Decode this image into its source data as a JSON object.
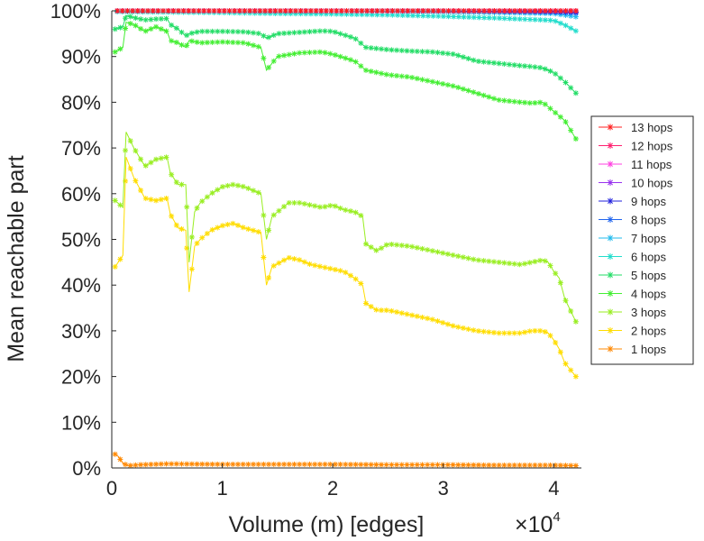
{
  "chart_data": {
    "type": "line",
    "xlabel": "Volume (m) [edges]",
    "ylabel": "Mean reachable part",
    "x_multiplier_label": "×10",
    "x_multiplier_exponent": "4",
    "xlim": [
      0,
      42500
    ],
    "ylim": [
      0,
      100
    ],
    "xticks": [
      0,
      10000,
      20000,
      30000,
      40000
    ],
    "xtick_labels": [
      "0",
      "1",
      "2",
      "3",
      "4"
    ],
    "yticks": [
      0,
      10,
      20,
      30,
      40,
      50,
      60,
      70,
      80,
      90,
      100
    ],
    "ytick_labels": [
      "0%",
      "10%",
      "20%",
      "30%",
      "40%",
      "50%",
      "60%",
      "70%",
      "80%",
      "90%",
      "100%"
    ],
    "grid": false,
    "legend_position": "right",
    "legend": [
      "13 hops",
      "12 hops",
      "11 hops",
      "10 hops",
      "9 hops",
      "8 hops",
      "7 hops",
      "6 hops",
      "5 hops",
      "4 hops",
      "3 hops",
      "2 hops",
      "1 hops"
    ],
    "series": [
      {
        "name": "13 hops",
        "color": "#ff2020",
        "x": [
          500,
          10000,
          20000,
          30000,
          40000,
          42000
        ],
        "y": [
          100,
          100,
          100,
          100,
          100,
          100
        ]
      },
      {
        "name": "12 hops",
        "color": "#ff2070",
        "x": [
          500,
          10000,
          20000,
          30000,
          40000,
          42000
        ],
        "y": [
          100,
          100,
          100,
          100,
          100,
          100
        ]
      },
      {
        "name": "11 hops",
        "color": "#ff40e0",
        "x": [
          500,
          10000,
          20000,
          30000,
          40000,
          42000
        ],
        "y": [
          100,
          100,
          100,
          100,
          100,
          100
        ]
      },
      {
        "name": "10 hops",
        "color": "#9933ee",
        "x": [
          500,
          10000,
          20000,
          30000,
          40000,
          42000
        ],
        "y": [
          100,
          100,
          100,
          100,
          100,
          100
        ]
      },
      {
        "name": "9 hops",
        "color": "#2222dd",
        "x": [
          500,
          10000,
          20000,
          30000,
          40000,
          42000
        ],
        "y": [
          100,
          100,
          100,
          100,
          99.8,
          99.7
        ]
      },
      {
        "name": "8 hops",
        "color": "#2266ee",
        "x": [
          500,
          10000,
          20000,
          30000,
          40000,
          42000
        ],
        "y": [
          100,
          100,
          100,
          100,
          99.7,
          99.5
        ]
      },
      {
        "name": "7 hops",
        "color": "#22bbee",
        "x": [
          500,
          10000,
          20000,
          30000,
          40000,
          42000
        ],
        "y": [
          100,
          100,
          100,
          99.8,
          99.4,
          98.7
        ]
      },
      {
        "name": "6 hops",
        "color": "#22ddcc",
        "x": [
          500,
          5000,
          10000,
          15000,
          20000,
          25000,
          30000,
          35000,
          40000,
          41000,
          42000
        ],
        "y": [
          99.8,
          99.7,
          99.6,
          99.4,
          99.3,
          99.1,
          98.8,
          98.4,
          97.9,
          96.9,
          95.6
        ]
      },
      {
        "name": "5 hops",
        "color": "#22dd66",
        "x": [
          300,
          1000,
          1300,
          2000,
          3000,
          4000,
          5000,
          5300,
          6000,
          6700,
          7000,
          8000,
          10000,
          12000,
          13500,
          14000,
          15000,
          17000,
          19000,
          20000,
          22000,
          23000,
          25000,
          27000,
          29000,
          31000,
          33000,
          35000,
          37000,
          38000,
          39000,
          40000,
          41000,
          42000
        ],
        "y": [
          96,
          96.5,
          99,
          98.5,
          98,
          98.2,
          98.3,
          97,
          96,
          94.5,
          95,
          95.5,
          95.5,
          95.4,
          95,
          94,
          95,
          95.3,
          95.6,
          95.5,
          94,
          92,
          91.5,
          91.2,
          91,
          90.5,
          89,
          88.5,
          88,
          87.8,
          87.5,
          86.5,
          84.5,
          82
        ]
      },
      {
        "name": "4 hops",
        "color": "#44ee33",
        "x": [
          300,
          1000,
          1300,
          2000,
          3000,
          4000,
          5000,
          5300,
          6000,
          6700,
          7000,
          8000,
          10000,
          12000,
          13500,
          14000,
          15000,
          17000,
          19000,
          20000,
          22000,
          23000,
          25000,
          27000,
          29000,
          31000,
          33000,
          35000,
          37000,
          38000,
          39000,
          40000,
          41000,
          42000
        ],
        "y": [
          91,
          92,
          97.5,
          97,
          95.5,
          96.5,
          95.5,
          93.5,
          93,
          92,
          93.5,
          93,
          93.2,
          93,
          92,
          87,
          90,
          90.8,
          91,
          90.5,
          89,
          87,
          86,
          85.5,
          84.5,
          83.5,
          82,
          80.5,
          80,
          79.8,
          80,
          78,
          76,
          72
        ]
      },
      {
        "name": "3 hops",
        "color": "#99ee22",
        "x": [
          300,
          1000,
          1300,
          2000,
          3000,
          4000,
          5000,
          5300,
          6000,
          6700,
          7000,
          7500,
          8000,
          9000,
          10000,
          11000,
          12000,
          13500,
          14000,
          14500,
          16000,
          17000,
          18000,
          19000,
          20000,
          21000,
          22000,
          22700,
          23000,
          24000,
          25000,
          27000,
          29000,
          31000,
          33000,
          35000,
          37000,
          38000,
          39000,
          39500,
          40000,
          40500,
          41000,
          42000
        ],
        "y": [
          58.5,
          57,
          73.5,
          70,
          66,
          67.5,
          68,
          64.5,
          62,
          62,
          45,
          56,
          58,
          60,
          61.5,
          62,
          61.5,
          60,
          50,
          55,
          58,
          58,
          57.5,
          57,
          57.5,
          56.5,
          56,
          55,
          49,
          47.5,
          49,
          48.5,
          47.5,
          46.5,
          45.5,
          45,
          44.5,
          45,
          45.5,
          45,
          43,
          41.5,
          37,
          32
        ]
      },
      {
        "name": "2 hops",
        "color": "#ffdd00",
        "x": [
          300,
          1000,
          1300,
          2000,
          3000,
          4000,
          5000,
          5300,
          6000,
          6700,
          7000,
          7500,
          8000,
          9000,
          10000,
          11000,
          12000,
          13500,
          14000,
          14500,
          16000,
          17000,
          18000,
          19000,
          20000,
          21000,
          22000,
          22700,
          23000,
          24000,
          25000,
          27000,
          29000,
          31000,
          33000,
          35000,
          37000,
          38000,
          39000,
          39500,
          40000,
          40500,
          41000,
          42000
        ],
        "y": [
          44,
          46.5,
          68,
          63.5,
          59,
          58.5,
          59,
          55.5,
          52.5,
          52,
          38.5,
          48.5,
          50,
          52,
          53,
          53.5,
          52.5,
          51.5,
          40,
          44,
          46,
          45.5,
          44.5,
          44,
          43.5,
          43,
          41.5,
          40,
          36,
          34.5,
          34.5,
          33.5,
          32.5,
          31,
          30,
          29.5,
          29.5,
          30,
          30,
          29.5,
          28,
          26,
          23,
          20
        ]
      },
      {
        "name": "1 hops",
        "color": "#ff8800",
        "x": [
          300,
          600,
          1000,
          1500,
          2500,
          5000,
          10000,
          15000,
          20000,
          25000,
          30000,
          35000,
          40000,
          42000
        ],
        "y": [
          3,
          2.5,
          1,
          0.5,
          0.7,
          0.9,
          0.8,
          0.8,
          0.8,
          0.7,
          0.7,
          0.6,
          0.6,
          0.5
        ]
      }
    ]
  }
}
